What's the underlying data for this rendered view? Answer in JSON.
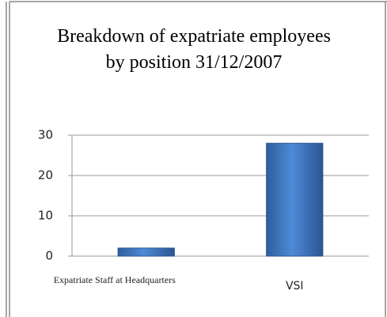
{
  "chart_data": {
    "type": "bar",
    "title": "Breakdown of expatriate employees by position 31/12/2007",
    "categories": [
      "Expatriate Staff at Headquarters",
      "VSI"
    ],
    "values": [
      2,
      28
    ],
    "color": "#3f78c4",
    "ylim": [
      0,
      30
    ],
    "yticks": [
      0,
      10,
      20,
      30
    ],
    "grid": true
  }
}
